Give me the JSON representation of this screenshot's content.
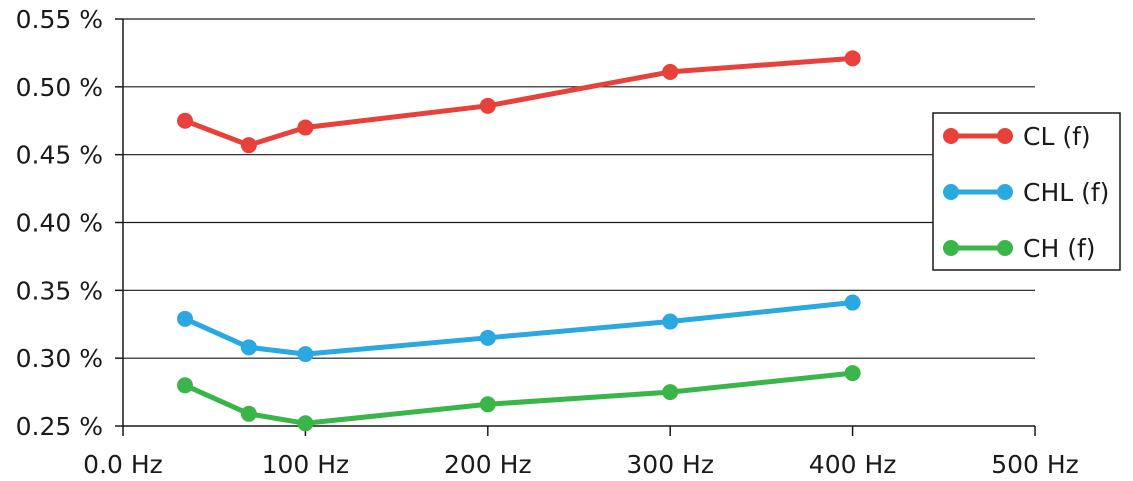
{
  "chart_data": {
    "type": "line",
    "title": "",
    "xlabel": "",
    "ylabel": "",
    "xlim": [
      0,
      500
    ],
    "ylim": [
      0.25,
      0.55
    ],
    "x_ticks": [
      {
        "value": 0,
        "label": "0.0 Hz"
      },
      {
        "value": 100,
        "label": "100 Hz"
      },
      {
        "value": 200,
        "label": "200 Hz"
      },
      {
        "value": 300,
        "label": "300 Hz"
      },
      {
        "value": 400,
        "label": "400 Hz"
      },
      {
        "value": 500,
        "label": "500 Hz"
      }
    ],
    "y_ticks": [
      {
        "value": 0.25,
        "label": "0.25 %"
      },
      {
        "value": 0.3,
        "label": "0.30 %"
      },
      {
        "value": 0.35,
        "label": "0.35 %"
      },
      {
        "value": 0.4,
        "label": "0.40 %"
      },
      {
        "value": 0.45,
        "label": "0.45 %"
      },
      {
        "value": 0.5,
        "label": "0.50 %"
      },
      {
        "value": 0.55,
        "label": "0.55 %"
      }
    ],
    "grid": "horizontal",
    "legend_position": "right",
    "x": [
      34,
      69,
      100,
      200,
      300,
      400
    ],
    "series": [
      {
        "name": "CL (f)",
        "color": "#e8403a",
        "values": [
          0.475,
          0.457,
          0.47,
          0.486,
          0.511,
          0.521
        ]
      },
      {
        "name": "CHL (f)",
        "color": "#2aa8e0",
        "values": [
          0.329,
          0.308,
          0.303,
          0.315,
          0.327,
          0.341
        ]
      },
      {
        "name": "CH (f)",
        "color": "#3ab54a",
        "values": [
          0.28,
          0.259,
          0.252,
          0.266,
          0.275,
          0.289
        ]
      }
    ]
  }
}
